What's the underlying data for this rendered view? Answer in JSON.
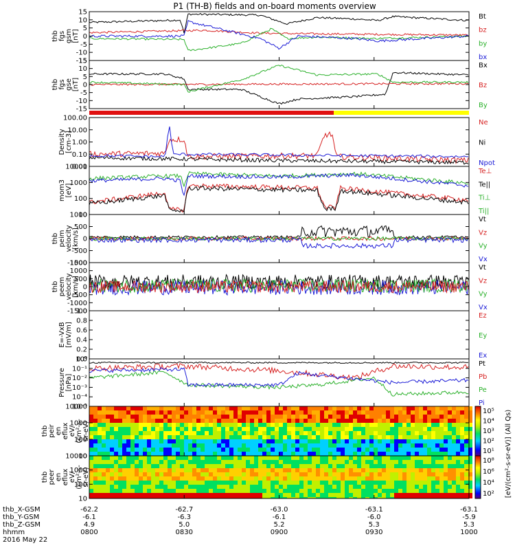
{
  "title": "P1 (TH-B) fields and on-board moments overview",
  "chart_data": {
    "type": "line",
    "x": {
      "ticks": [
        "0800",
        "0830",
        "0900",
        "0930",
        "1000"
      ],
      "range": [
        "0800",
        "1000"
      ]
    },
    "panels": [
      {
        "ylabel": [
          "thb",
          "fgs",
          "gsm",
          "[nT]"
        ],
        "ylim": [
          -15,
          15
        ],
        "ticks": [
          "15",
          "10",
          "5",
          "0",
          "-5",
          "-10",
          "-15"
        ],
        "legend": [
          {
            "name": "Bt",
            "color": "#000000"
          },
          {
            "name": "bz",
            "color": "#d62020"
          },
          {
            "name": "by",
            "color": "#2ab02a"
          },
          {
            "name": "bx",
            "color": "#1a1ad6"
          }
        ]
      },
      {
        "ylabel": [
          "thb",
          "fgs",
          "gse",
          "[nT]"
        ],
        "ylim": [
          -15,
          15
        ],
        "ticks": [
          "15",
          "10",
          "5",
          "0",
          "-5",
          "-10",
          "-15"
        ],
        "legend": [
          {
            "name": "Bx",
            "color": "#000000"
          },
          {
            "name": "Bz",
            "color": "#d62020"
          },
          {
            "name": "By",
            "color": "#2ab02a"
          }
        ]
      },
      {
        "ylabel": [
          "Density",
          "[cm-3]"
        ],
        "ylim": [
          0.01,
          100
        ],
        "ticks": [
          "100.00",
          "10.00",
          "1.00",
          "0.10",
          "0.01"
        ],
        "legend": [
          {
            "name": "Ne",
            "color": "#d62020"
          },
          {
            "name": "Ni",
            "color": "#000000"
          },
          {
            "name": "Npot",
            "color": "#1a1ad6"
          }
        ]
      },
      {
        "ylabel": [
          "mom3",
          "[eV]"
        ],
        "ylim": [
          10,
          10000
        ],
        "ticks": [
          "10000",
          "1000",
          "100",
          "10"
        ],
        "legend": [
          {
            "name": "Te⊥",
            "color": "#d62020"
          },
          {
            "name": "Te||",
            "color": "#000000"
          },
          {
            "name": "Ti⊥",
            "color": "#2ab02a"
          },
          {
            "name": "Ti||",
            "color": "#2ab02a"
          }
        ]
      },
      {
        "ylabel": [
          "thb",
          "peim",
          "velocity",
          "[km/s]"
        ],
        "ylim": [
          -1000,
          1000
        ],
        "ticks": [
          "1000",
          "500",
          "0",
          "-500",
          "-1000"
        ],
        "legend": [
          {
            "name": "Vt",
            "color": "#000000"
          },
          {
            "name": "Vz",
            "color": "#d62020"
          },
          {
            "name": "Vy",
            "color": "#2ab02a"
          },
          {
            "name": "Vx",
            "color": "#1a1ad6"
          }
        ]
      },
      {
        "ylabel": [
          "thb",
          "peem",
          "velocity",
          "[km/s]"
        ],
        "ylim": [
          -1500,
          1500
        ],
        "ticks": [
          "1500",
          "1000",
          "500",
          "0",
          "-500",
          "-1000",
          "-1500"
        ],
        "legend": [
          {
            "name": "Vt",
            "color": "#000000"
          },
          {
            "name": "Vz",
            "color": "#d62020"
          },
          {
            "name": "Vy",
            "color": "#2ab02a"
          },
          {
            "name": "Vx",
            "color": "#1a1ad6"
          }
        ]
      },
      {
        "ylabel": [
          "E=-VxB",
          "[mV/m]"
        ],
        "ylim": [
          0,
          1
        ],
        "ticks": [
          "1.0",
          "0.8",
          "0.6",
          "0.4",
          "0.2",
          "0.0"
        ],
        "legend": [
          {
            "name": "Ez",
            "color": "#d62020"
          },
          {
            "name": "Ey",
            "color": "#2ab02a"
          },
          {
            "name": "Ex",
            "color": "#1a1ad6"
          }
        ]
      },
      {
        "ylabel": [
          "Pressure",
          "[nPa]"
        ],
        "ylim": [
          1e-05,
          1
        ],
        "ticks": [
          "10⁰",
          "10⁻¹",
          "10⁻²",
          "10⁻³",
          "10⁻⁴",
          "10⁻⁵"
        ],
        "legend": [
          {
            "name": "Pt",
            "color": "#000000"
          },
          {
            "name": "Pb",
            "color": "#d62020"
          },
          {
            "name": "Pe",
            "color": "#2ab02a"
          },
          {
            "name": "Pi",
            "color": "#1a1ad6"
          }
        ]
      },
      {
        "ylabel": [
          "thb",
          "peir",
          "en",
          "eflux",
          "eV/",
          "(cm²-s-",
          "sr-eV)"
        ],
        "ylim": [
          10,
          10000
        ],
        "ticks": [
          "10000",
          "1000",
          "100",
          "10"
        ]
      },
      {
        "ylabel": [
          "thb",
          "peer",
          "en",
          "eflux",
          "eV/",
          "(cm²-s-",
          "sr-eV)"
        ],
        "ylim": [
          10,
          10000
        ],
        "ticks": [
          "10000",
          "1000",
          "100",
          "10"
        ]
      }
    ],
    "colorbar": {
      "label": "[eV/(cm²-s-sr-eV)] (All Qs)",
      "ticks1": [
        "10⁵",
        "10⁴",
        "10³",
        "10²",
        "10¹"
      ],
      "ticks2": [
        "10⁸",
        "10⁶",
        "10⁴",
        "10²"
      ]
    },
    "ephemeris": {
      "rows": [
        {
          "label": "thb_X-GSM",
          "values": [
            "-62.2",
            "-62.7",
            "-63.0",
            "-63.1",
            "-63.1"
          ]
        },
        {
          "label": "thb_Y-GSM",
          "values": [
            "-6.1",
            "-6.3",
            "-6.1",
            "-6.0",
            "-5.9"
          ]
        },
        {
          "label": "thb_Z-GSM",
          "values": [
            "4.9",
            "5.0",
            "5.2",
            "5.3",
            "5.3"
          ]
        },
        {
          "label": "hhmm",
          "values": [
            "0800",
            "0830",
            "0900",
            "0930",
            "1000"
          ]
        }
      ],
      "date": "2016 May 22"
    }
  }
}
